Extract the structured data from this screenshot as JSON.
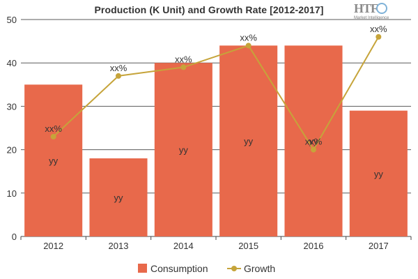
{
  "chart_data": {
    "type": "bar",
    "title": "Production (K Unit) and Growth Rate [2012-2017]",
    "categories": [
      "2012",
      "2013",
      "2014",
      "2015",
      "2016",
      "2017"
    ],
    "ylim": [
      0,
      50
    ],
    "yticks": [
      0,
      10,
      20,
      30,
      40,
      50
    ],
    "grid": true,
    "legend_position": "bottom",
    "series": [
      {
        "name": "Consumption",
        "kind": "bar",
        "color": "#e8694b",
        "values": [
          35,
          18,
          40,
          44,
          44,
          29
        ],
        "labels": [
          "yy",
          "yy",
          "yy",
          "yy",
          "yy",
          "yy"
        ]
      },
      {
        "name": "Growth",
        "kind": "line",
        "color": "#c6a43a",
        "values": [
          23,
          37,
          39,
          44,
          20,
          46
        ],
        "labels": [
          "xx%",
          "xx%",
          "xx%",
          "xx%",
          "xx%",
          "xx%"
        ]
      }
    ]
  },
  "logo": {
    "mark": "HTF",
    "sub": "Market Intelligence"
  }
}
